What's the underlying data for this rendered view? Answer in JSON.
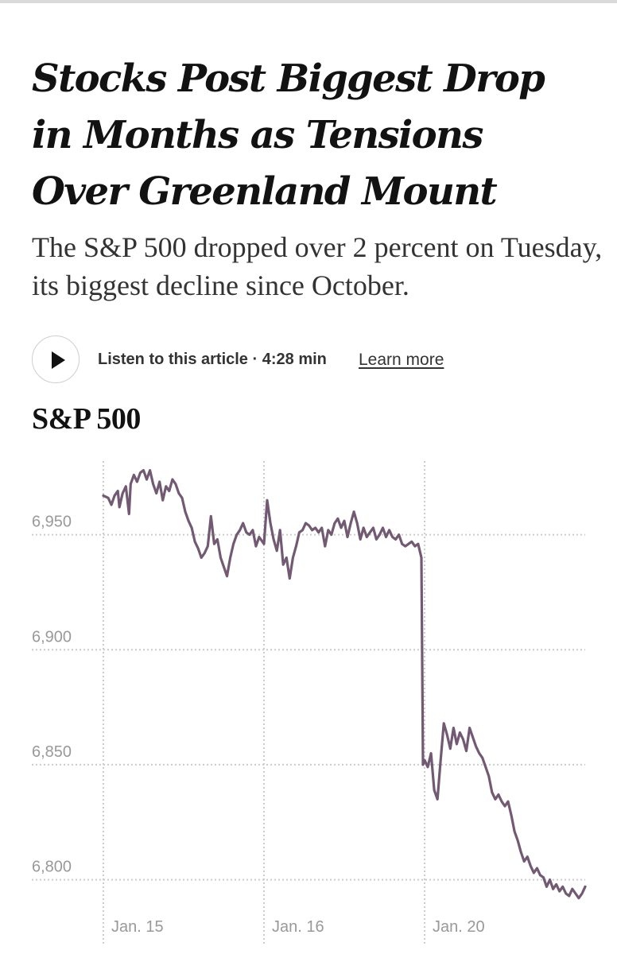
{
  "article": {
    "headline": "Stocks Post Biggest Drop in Months as Tensions Over Greenland Mount",
    "summary": "The S&P 500 dropped over 2 percent on Tuesday, its biggest decline since October.",
    "audio": {
      "label": "Listen to this article",
      "separator": "·",
      "duration": "4:28 min",
      "learn_more": "Learn more"
    }
  },
  "colors": {
    "line": "#735a73",
    "grid": "#cccccc",
    "tick_text": "#999999"
  },
  "chart_data": {
    "type": "line",
    "title": "S&P 500",
    "xlabel": "",
    "ylabel": "",
    "ylim": [
      6785,
      6982
    ],
    "y_ticks": [
      6800,
      6850,
      6900,
      6950
    ],
    "y_tick_labels": [
      "6,800",
      "6,850",
      "6,900",
      "6,950"
    ],
    "x_ticks": [
      0,
      1,
      2
    ],
    "x_tick_labels": [
      "Jan. 15",
      "Jan. 16",
      "Jan. 20"
    ],
    "x_range": [
      0,
      3
    ],
    "series": [
      {
        "name": "S&P 500",
        "x": [
          0.0,
          0.03,
          0.05,
          0.07,
          0.09,
          0.1,
          0.12,
          0.14,
          0.16,
          0.17,
          0.19,
          0.21,
          0.23,
          0.25,
          0.27,
          0.29,
          0.31,
          0.33,
          0.35,
          0.37,
          0.39,
          0.41,
          0.43,
          0.45,
          0.47,
          0.49,
          0.51,
          0.53,
          0.55,
          0.57,
          0.59,
          0.61,
          0.63,
          0.65,
          0.67,
          0.69,
          0.71,
          0.73,
          0.75,
          0.77,
          0.79,
          0.81,
          0.83,
          0.85,
          0.87,
          0.89,
          0.91,
          0.93,
          0.95,
          0.97,
          0.99,
          1.0,
          1.02,
          1.04,
          1.06,
          1.08,
          1.1,
          1.12,
          1.14,
          1.16,
          1.18,
          1.2,
          1.22,
          1.24,
          1.26,
          1.28,
          1.3,
          1.32,
          1.34,
          1.36,
          1.38,
          1.4,
          1.42,
          1.44,
          1.46,
          1.48,
          1.5,
          1.52,
          1.54,
          1.56,
          1.58,
          1.6,
          1.62,
          1.64,
          1.66,
          1.68,
          1.7,
          1.72,
          1.74,
          1.76,
          1.78,
          1.8,
          1.82,
          1.84,
          1.86,
          1.88,
          1.9,
          1.92,
          1.94,
          1.96,
          1.98,
          1.99,
          2.0,
          2.02,
          2.04,
          2.06,
          2.08,
          2.1,
          2.12,
          2.14,
          2.16,
          2.18,
          2.2,
          2.22,
          2.24,
          2.26,
          2.28,
          2.3,
          2.32,
          2.34,
          2.36,
          2.38,
          2.4,
          2.42,
          2.44,
          2.46,
          2.48,
          2.5,
          2.52,
          2.54,
          2.56,
          2.58,
          2.6,
          2.62,
          2.64,
          2.66,
          2.68,
          2.7,
          2.72,
          2.74,
          2.76,
          2.78,
          2.8,
          2.82,
          2.84,
          2.86,
          2.88,
          2.9,
          2.92,
          2.94,
          2.96,
          2.98,
          3.0
        ],
        "values": [
          6967,
          6966,
          6963,
          6967,
          6969,
          6962,
          6968,
          6971,
          6959,
          6972,
          6976,
          6973,
          6977,
          6978,
          6974,
          6978,
          6972,
          6968,
          6973,
          6965,
          6971,
          6969,
          6974,
          6972,
          6968,
          6966,
          6960,
          6956,
          6953,
          6947,
          6944,
          6940,
          6942,
          6945,
          6958,
          6946,
          6948,
          6940,
          6936,
          6932,
          6940,
          6946,
          6950,
          6952,
          6955,
          6951,
          6950,
          6952,
          6945,
          6949,
          6947,
          6946,
          6965,
          6955,
          6948,
          6943,
          6952,
          6937,
          6940,
          6931,
          6940,
          6945,
          6951,
          6952,
          6955,
          6954,
          6952,
          6953,
          6951,
          6953,
          6945,
          6952,
          6950,
          6955,
          6957,
          6953,
          6956,
          6949,
          6955,
          6960,
          6955,
          6948,
          6953,
          6949,
          6951,
          6953,
          6948,
          6950,
          6953,
          6949,
          6952,
          6949,
          6948,
          6950,
          6946,
          6945,
          6946,
          6947,
          6945,
          6946,
          6940,
          6850,
          6852,
          6849,
          6855,
          6839,
          6835,
          6852,
          6868,
          6863,
          6857,
          6866,
          6859,
          6864,
          6861,
          6856,
          6866,
          6862,
          6858,
          6855,
          6853,
          6849,
          6845,
          6838,
          6835,
          6837,
          6834,
          6832,
          6834,
          6828,
          6821,
          6817,
          6812,
          6808,
          6810,
          6806,
          6803,
          6805,
          6802,
          6801,
          6797,
          6800,
          6796,
          6798,
          6795,
          6797,
          6794,
          6793,
          6796,
          6794,
          6792,
          6794,
          6797
        ]
      }
    ]
  }
}
